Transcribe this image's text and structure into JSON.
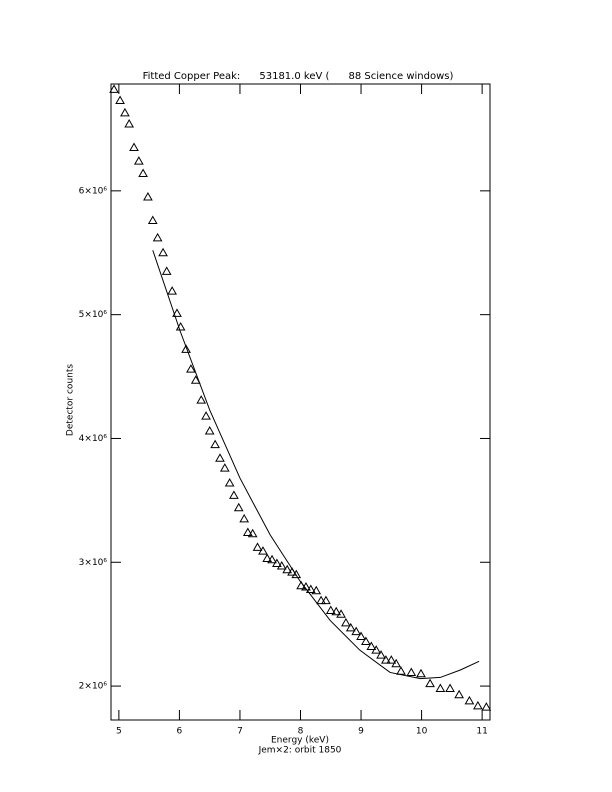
{
  "chart_data": {
    "type": "scatter",
    "title": "Fitted Copper Peak:      53181.0 keV (      88 Science windows)",
    "x_label": "Energy (keV)",
    "subtitle": "Jem×2: orbit 1850",
    "y_label": "Detector counts",
    "xlim": [
      4.87,
      11.13
    ],
    "ylim": [
      1726000,
      6863000
    ],
    "xticks": [
      5,
      6,
      7,
      8,
      9,
      10,
      11
    ],
    "yticks": [
      {
        "value": 2000000,
        "label": "2×10⁶"
      },
      {
        "value": 3000000,
        "label": "3×10⁶"
      },
      {
        "value": 4000000,
        "label": "4×10⁶"
      },
      {
        "value": 5000000,
        "label": "5×10⁶"
      },
      {
        "value": 6000000,
        "label": "6×10⁶"
      }
    ],
    "series": [
      {
        "type": "scatter",
        "marker": "triangle",
        "color": "#000000",
        "x": [
          4.92,
          5.02,
          5.1,
          5.17,
          5.25,
          5.33,
          5.4,
          5.48,
          5.56,
          5.64,
          5.73,
          5.79,
          5.88,
          5.96,
          6.02,
          6.11,
          6.19,
          6.27,
          6.36,
          6.44,
          6.5,
          6.59,
          6.67,
          6.75,
          6.83,
          6.9,
          6.98,
          7.07,
          7.13,
          7.21,
          7.29,
          7.38,
          7.45,
          7.53,
          7.61,
          7.69,
          7.78,
          7.86,
          7.93,
          8.01,
          8.09,
          8.17,
          8.26,
          8.34,
          8.42,
          8.5,
          8.59,
          8.67,
          8.75,
          8.83,
          8.92,
          9.0,
          9.08,
          9.17,
          9.25,
          9.33,
          9.41,
          9.5,
          9.58,
          9.66,
          9.83,
          9.99,
          10.14,
          10.31,
          10.47,
          10.62,
          10.79,
          10.93,
          11.07
        ],
        "values": [
          6820000,
          6730000,
          6630000,
          6540000,
          6350000,
          6240000,
          6140000,
          5950000,
          5760000,
          5620000,
          5500000,
          5350000,
          5190000,
          5010000,
          4900000,
          4720000,
          4560000,
          4470000,
          4310000,
          4180000,
          4060000,
          3950000,
          3840000,
          3760000,
          3640000,
          3540000,
          3440000,
          3350000,
          3240000,
          3230000,
          3120000,
          3090000,
          3030000,
          3020000,
          2990000,
          2970000,
          2940000,
          2920000,
          2900000,
          2810000,
          2800000,
          2780000,
          2770000,
          2690000,
          2690000,
          2610000,
          2600000,
          2580000,
          2510000,
          2470000,
          2440000,
          2400000,
          2360000,
          2320000,
          2290000,
          2250000,
          2210000,
          2210000,
          2180000,
          2120000,
          2110000,
          2100000,
          2020000,
          1980000,
          1980000,
          1930000,
          1880000,
          1840000,
          1830000
        ]
      },
      {
        "type": "line",
        "color": "#000000",
        "x": [
          5.56,
          6.01,
          6.5,
          7.0,
          7.5,
          7.99,
          8.49,
          8.98,
          9.48,
          9.98,
          10.31,
          10.64,
          10.95
        ],
        "values": [
          5520000,
          4870000,
          4230000,
          3680000,
          3220000,
          2850000,
          2530000,
          2290000,
          2110000,
          2060000,
          2070000,
          2130000,
          2200000
        ]
      }
    ]
  }
}
